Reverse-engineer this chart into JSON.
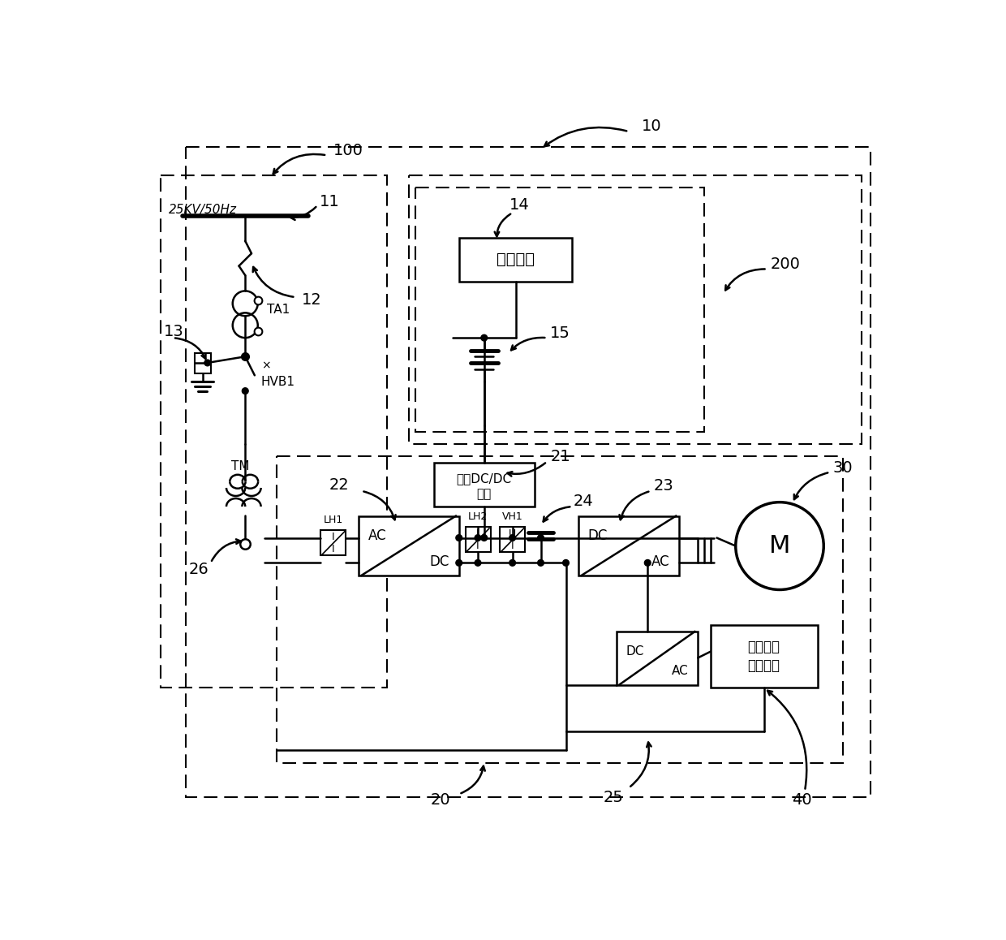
{
  "bg_color": "#ffffff",
  "lc": "#000000",
  "figsize": [
    12.4,
    11.58
  ],
  "dpi": 100,
  "texts": {
    "25KV": "25KV/50Hz",
    "TA1": "TA1",
    "HVB1": "HVB1",
    "TM": "TM",
    "LH1": "LH1",
    "LH2": "LH2",
    "VH1": "VH1",
    "AC1": "AC",
    "DC1": "DC",
    "DC2": "DC",
    "AC2": "AC",
    "DC3": "DC",
    "AC3": "AC",
    "M": "M",
    "charge": "充电模块",
    "dcdc": "双向DC/DC\n模块",
    "other": "整车其它\n用电设备",
    "n10": "10",
    "n100": "100",
    "n11": "11",
    "n12": "12",
    "n13": "13",
    "n14": "14",
    "n15": "15",
    "n200": "200",
    "n20": "20",
    "n21": "21",
    "n22": "22",
    "n23": "23",
    "n24": "24",
    "n25": "25",
    "n26": "26",
    "n30": "30",
    "n40": "40"
  }
}
